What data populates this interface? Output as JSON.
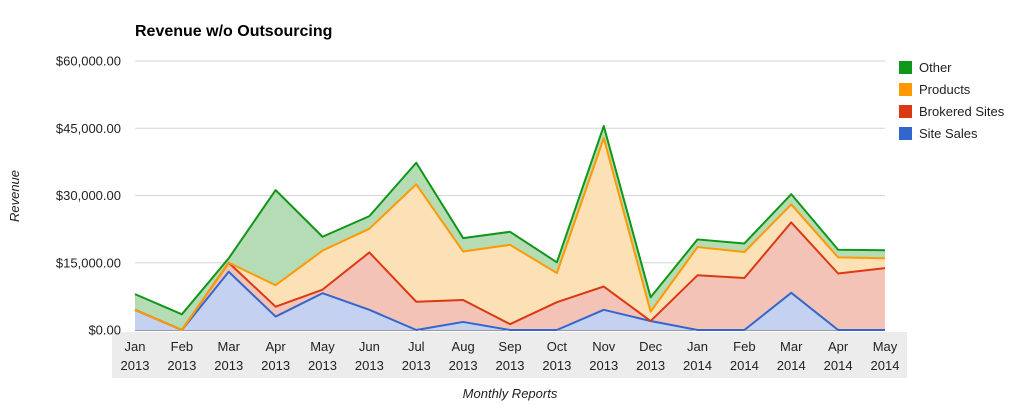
{
  "chart_data": {
    "type": "area",
    "stacked": true,
    "title": "Revenue w/o Outsourcing",
    "xlabel": "Monthly Reports",
    "ylabel": "Revenue",
    "ylim": [
      0,
      60000
    ],
    "yticks": [
      "$0.00",
      "$15,000.00",
      "$30,000.00",
      "$45,000.00",
      "$60,000.00"
    ],
    "ytick_values": [
      0,
      15000,
      30000,
      45000,
      60000
    ],
    "grid": true,
    "legend_position": "right",
    "categories": [
      [
        "Jan",
        "2013"
      ],
      [
        "Feb",
        "2013"
      ],
      [
        "Mar",
        "2013"
      ],
      [
        "Apr",
        "2013"
      ],
      [
        "May",
        "2013"
      ],
      [
        "Jun",
        "2013"
      ],
      [
        "Jul",
        "2013"
      ],
      [
        "Aug",
        "2013"
      ],
      [
        "Sep",
        "2013"
      ],
      [
        "Oct",
        "2013"
      ],
      [
        "Nov",
        "2013"
      ],
      [
        "Dec",
        "2013"
      ],
      [
        "Jan",
        "2014"
      ],
      [
        "Feb",
        "2014"
      ],
      [
        "Mar",
        "2014"
      ],
      [
        "Apr",
        "2014"
      ],
      [
        "May",
        "2014"
      ]
    ],
    "series": [
      {
        "name": "Site Sales",
        "color": "#3366cc",
        "fill": "#c5d1f0",
        "values": [
          4500,
          0,
          13000,
          3000,
          8200,
          4500,
          0,
          1800,
          0,
          0,
          4500,
          2000,
          0,
          0,
          8300,
          0,
          0
        ]
      },
      {
        "name": "Brokered Sites",
        "color": "#dc3912",
        "fill": "#f3c3b7",
        "values": [
          0,
          0,
          2000,
          2200,
          800,
          12800,
          6300,
          4900,
          1300,
          6200,
          5200,
          0,
          12200,
          11600,
          15700,
          12600,
          13800
        ]
      },
      {
        "name": "Products",
        "color": "#ff9900",
        "fill": "#fde1b6",
        "values": [
          0,
          0,
          0,
          4800,
          8700,
          5300,
          26200,
          10800,
          17700,
          6500,
          33100,
          2100,
          6300,
          5800,
          4000,
          3600,
          2200
        ]
      },
      {
        "name": "Other",
        "color": "#109618",
        "fill": "#b5dcb5",
        "values": [
          3500,
          3500,
          1000,
          21200,
          3100,
          2800,
          4800,
          3000,
          2900,
          2400,
          2700,
          3200,
          1700,
          1900,
          2300,
          1700,
          1800
        ]
      }
    ],
    "legend_order": [
      "Other",
      "Products",
      "Brokered Sites",
      "Site Sales"
    ]
  }
}
